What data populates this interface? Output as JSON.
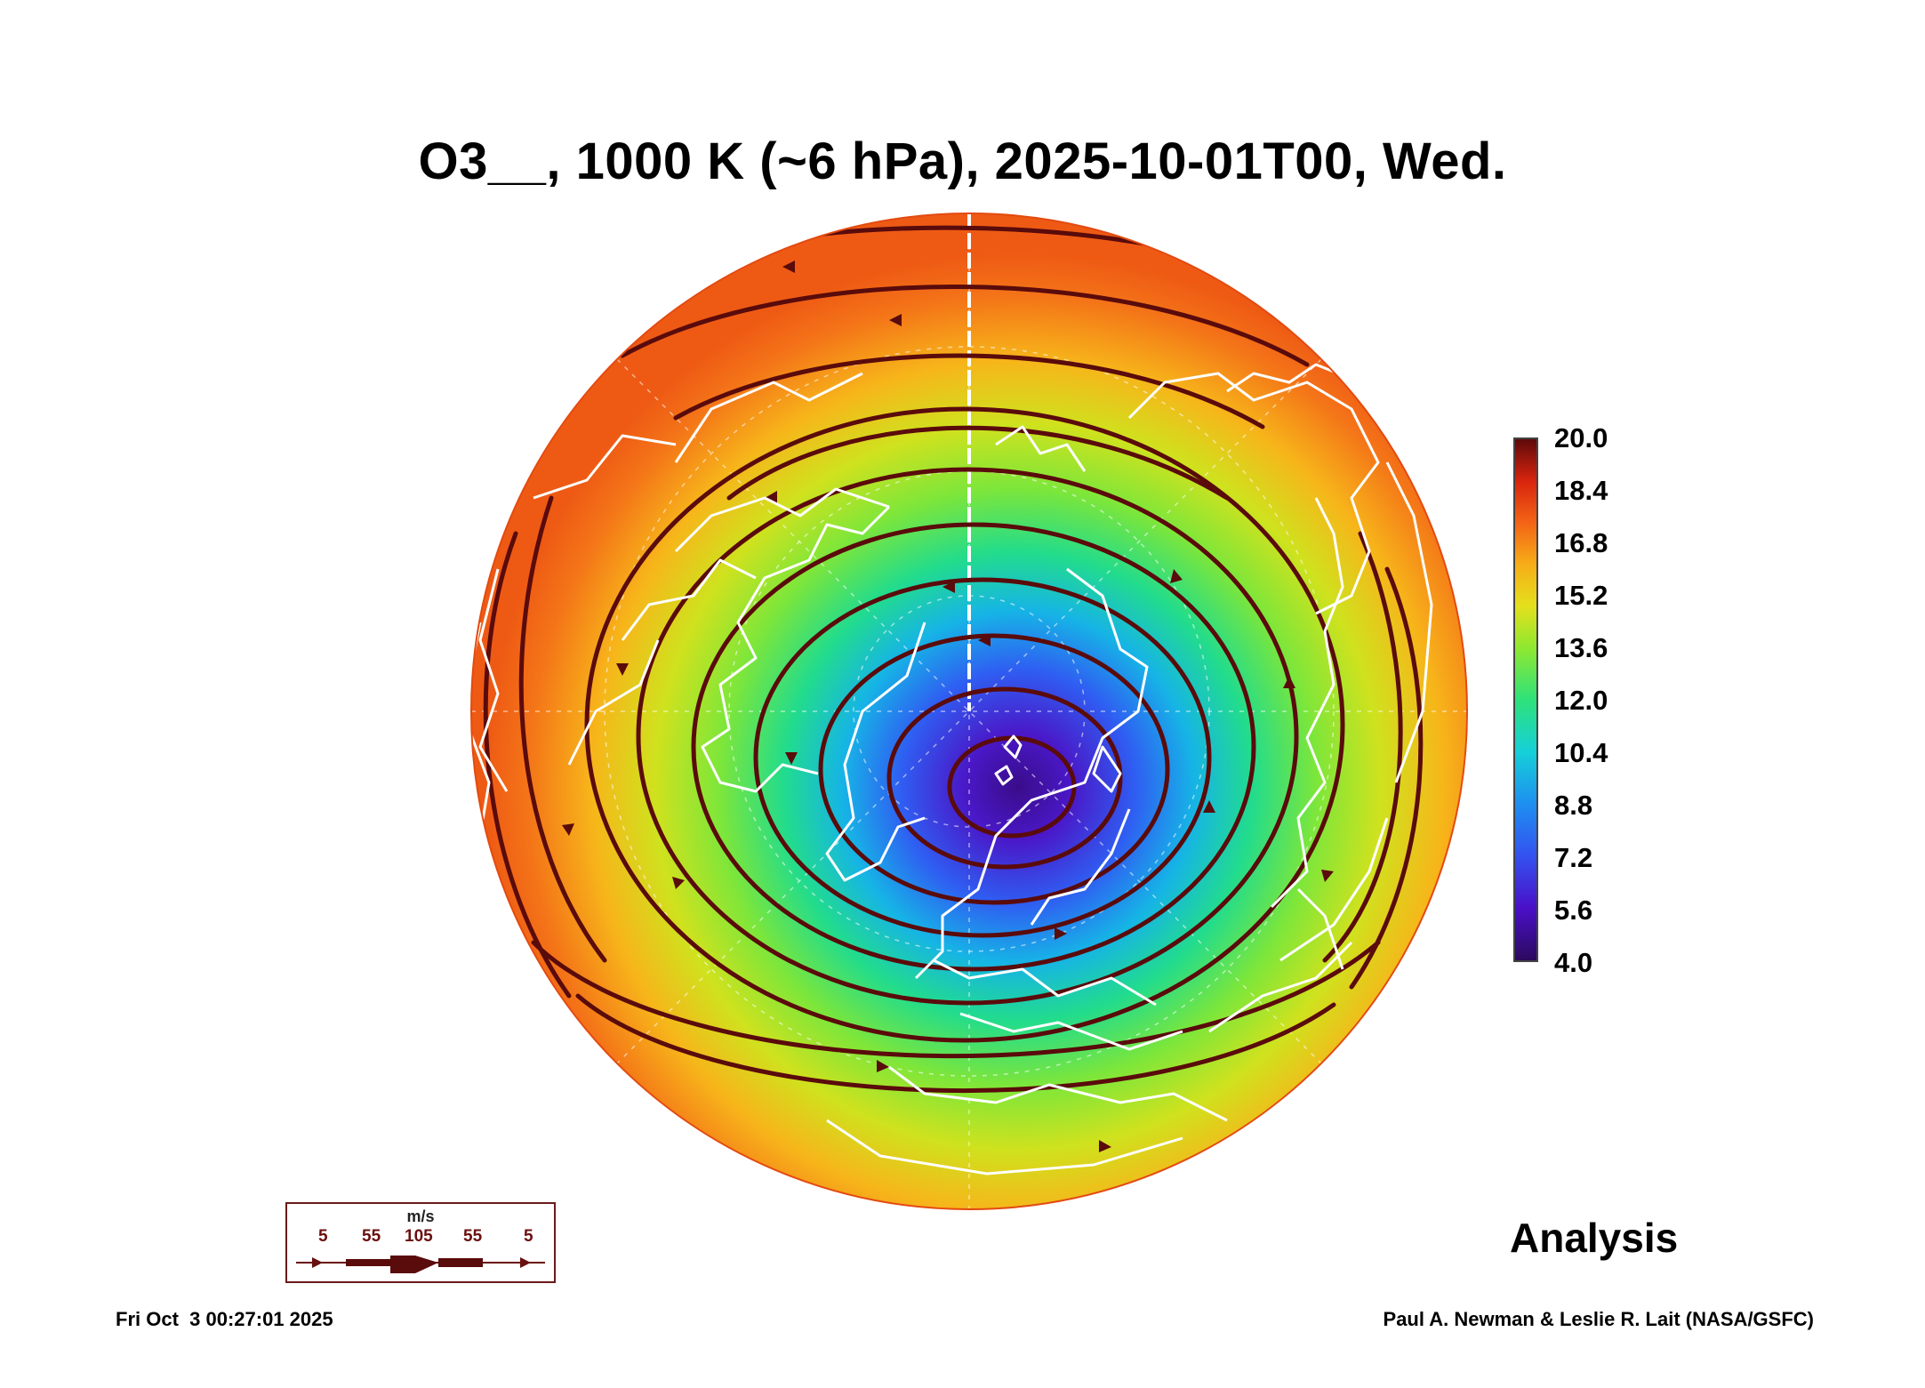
{
  "title": "O3__, 1000 K (~6 hPa), 2025-10-01T00, Wed.",
  "colorbar": {
    "labels": [
      "20.0",
      "18.4",
      "16.8",
      "15.2",
      "13.6",
      "12.0",
      "10.4",
      "8.8",
      "7.2",
      "5.6",
      "4.0"
    ],
    "min": 4.0,
    "max": 20.0
  },
  "legend": {
    "unit": "m/s",
    "values": [
      "5",
      "55",
      "105",
      "55",
      "5"
    ]
  },
  "analysis_label": "Analysis",
  "footer": {
    "timestamp": "Fri Oct  3 00:27:01 2025",
    "credit": "Paul A. Newman & Leslie R. Lait (NASA/GSFC)"
  },
  "colors": {
    "low": "#2b0a5e",
    "mid": "#7ee83a",
    "high": "#f46a18",
    "streamline": "#5a0b0b",
    "coast": "#ffffff"
  }
}
